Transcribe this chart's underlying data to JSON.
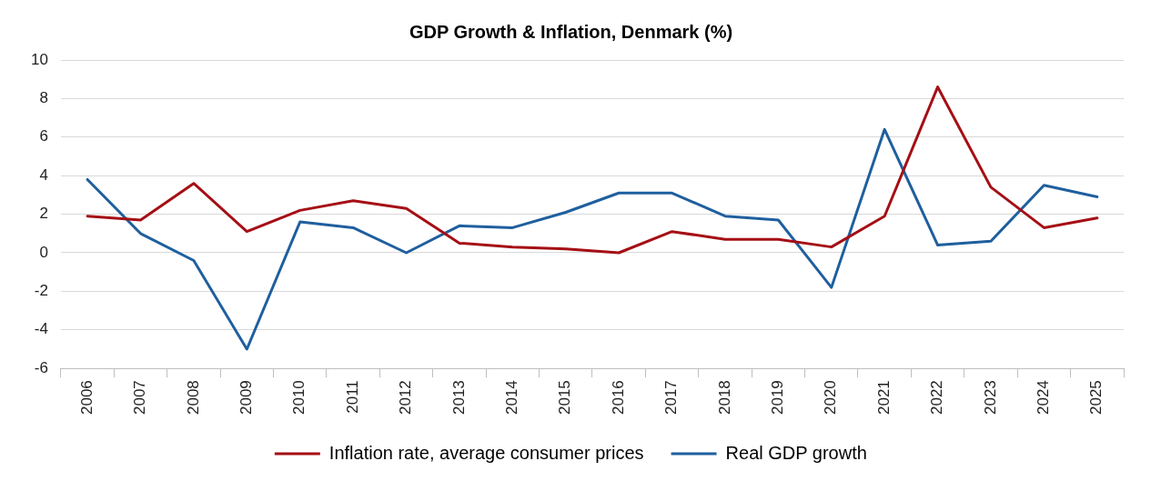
{
  "chart_data": {
    "type": "line",
    "title": "GDP Growth & Inflation, Denmark (%)",
    "categories": [
      "2006",
      "2007",
      "2008",
      "2009",
      "2010",
      "2011",
      "2012",
      "2013",
      "2014",
      "2015",
      "2016",
      "2017",
      "2018",
      "2019",
      "2020",
      "2021",
      "2022",
      "2023",
      "2024",
      "2025"
    ],
    "series": [
      {
        "name": "Inflation rate, average consumer prices",
        "color": "#a50f15",
        "values": [
          1.9,
          1.7,
          3.6,
          1.1,
          2.2,
          2.7,
          2.3,
          0.5,
          0.3,
          0.2,
          0,
          1.1,
          0.7,
          0.7,
          0.3,
          1.9,
          8.6,
          3.4,
          1.3,
          1.8
        ]
      },
      {
        "name": "Real GDP growth",
        "color": "#1f5f9e",
        "values": [
          3.8,
          1.0,
          -0.4,
          -5.0,
          1.6,
          1.3,
          0,
          1.4,
          1.3,
          2.1,
          3.1,
          3.1,
          1.9,
          1.7,
          -1.8,
          6.4,
          0.4,
          0.6,
          3.5,
          2.9
        ]
      }
    ],
    "ylim": [
      -6,
      10
    ],
    "yticks": [
      -6,
      -4,
      -2,
      0,
      2,
      4,
      6,
      8,
      10
    ],
    "grid": "y",
    "legend": "bottom",
    "marker": "none",
    "line_style": "solid"
  }
}
